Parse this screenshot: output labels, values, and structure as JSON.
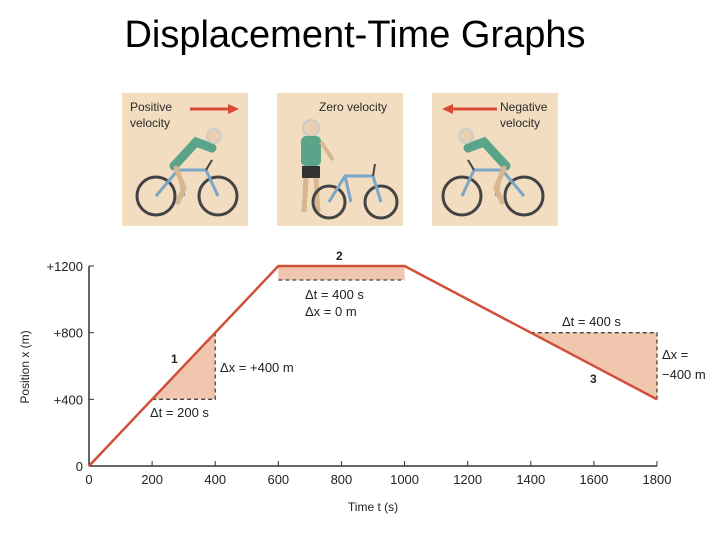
{
  "title": "Displacement-Time Graphs",
  "panels": [
    {
      "label": "Positive\nvelocity",
      "arrow": "right-arrow"
    },
    {
      "label": "Zero velocity",
      "arrow": "none"
    },
    {
      "label": "Negative\nvelocity",
      "arrow": "left-arrow"
    }
  ],
  "chart_data": {
    "type": "line",
    "x": [
      0,
      600,
      1000,
      1800
    ],
    "y": [
      0,
      1200,
      1200,
      400
    ],
    "xlabel": "Time t (s)",
    "ylabel": "Position x (m)",
    "xlim": [
      0,
      1800
    ],
    "ylim": [
      0,
      1200
    ],
    "xticks": [
      0,
      200,
      400,
      600,
      800,
      1000,
      1200,
      1400,
      1600,
      1800
    ],
    "xtick_labels": [
      "0",
      "200",
      "400",
      "600",
      "800",
      "1000",
      "1200",
      "1400",
      "1600",
      "1800"
    ],
    "yticks": [
      0,
      400,
      800,
      1200
    ],
    "ytick_labels": [
      "0",
      "+400",
      "+800",
      "+1200"
    ],
    "grid": false,
    "annotations": [
      {
        "segment": "1",
        "dt": "Δt = 200 s",
        "dx": "Δx = +400 m"
      },
      {
        "segment": "2",
        "dt": "Δt = 400 s",
        "dx": "Δx = 0 m"
      },
      {
        "segment": "3",
        "dt": "Δt = 400 s",
        "dx_line1": "Δx =",
        "dx_line2": "−400 m"
      }
    ]
  },
  "colors": {
    "line": "#d0503a",
    "fill": "#f0c7ae",
    "panel_bg": "#f2ddc1",
    "arrow": "#d84a32"
  }
}
